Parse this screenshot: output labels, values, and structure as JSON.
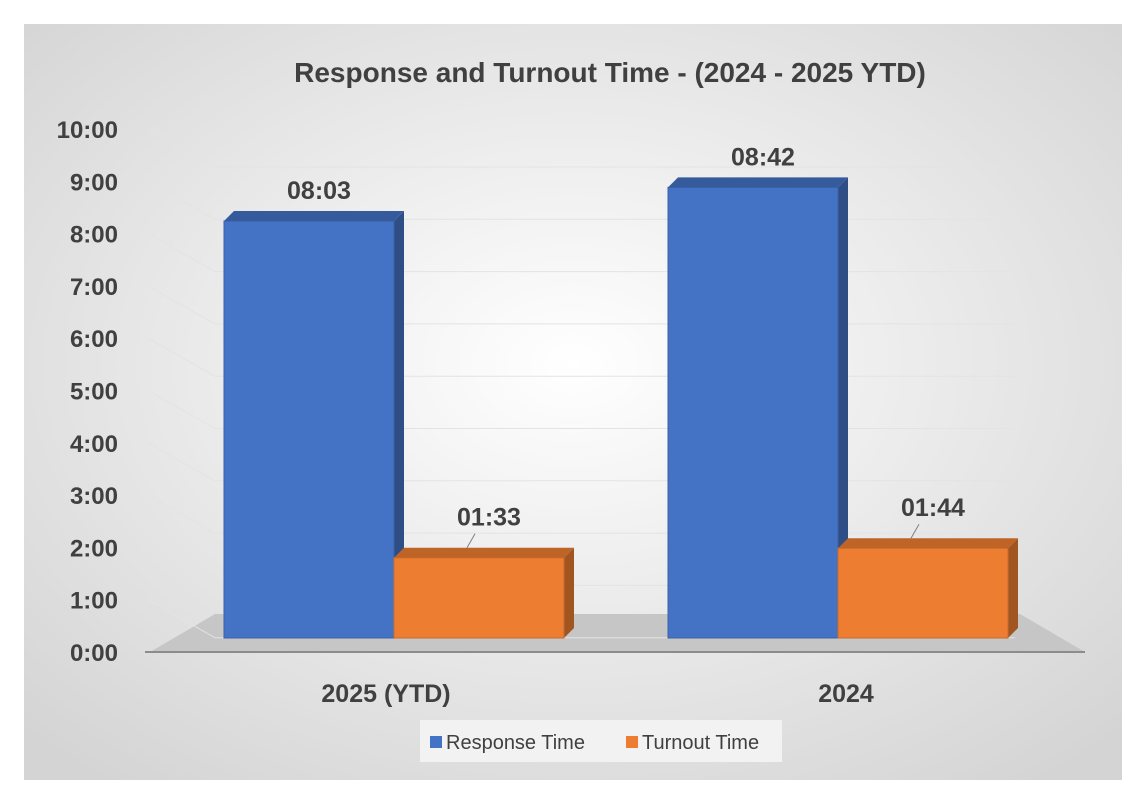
{
  "chart_data": {
    "type": "bar",
    "title": "Response and Turnout Time - (2024 - 2025 YTD)",
    "categories": [
      "2025 (YTD)",
      "2024"
    ],
    "series": [
      {
        "name": "Response Time",
        "values": [
          8.05,
          8.7
        ],
        "labels": [
          "08:03",
          "08:42"
        ],
        "color": "#4472C4"
      },
      {
        "name": "Turnout Time",
        "values": [
          1.55,
          1.7333
        ],
        "labels": [
          "01:33",
          "01:44"
        ],
        "color": "#ED7D31"
      }
    ],
    "y_ticks": [
      "0:00",
      "1:00",
      "2:00",
      "3:00",
      "4:00",
      "5:00",
      "6:00",
      "7:00",
      "8:00",
      "9:00",
      "10:00"
    ],
    "ylim": [
      0,
      10
    ],
    "grid": true,
    "legend": "bottom"
  }
}
